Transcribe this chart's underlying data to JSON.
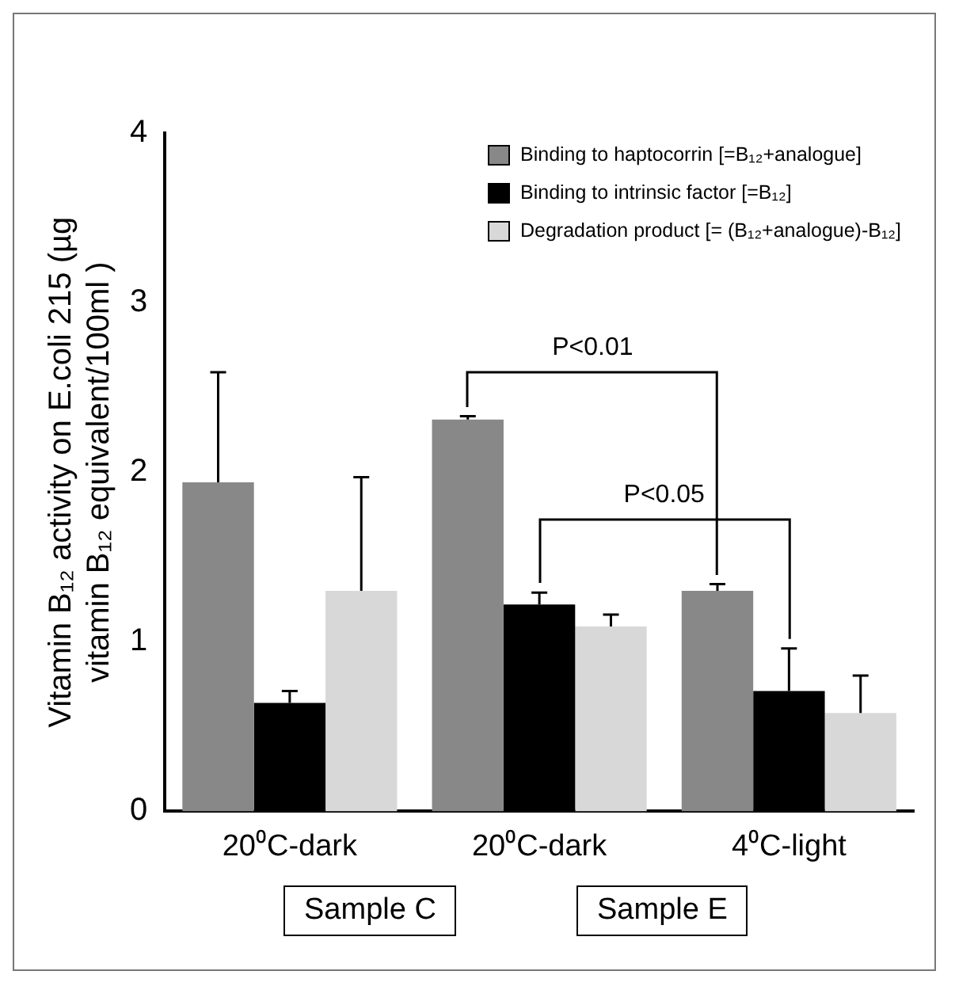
{
  "chart_data": {
    "type": "bar",
    "ylabel": "Vitamin B₁₂ activity on E.coli 215 (µg vitamin B₁₂ equivalent/100ml )",
    "categories": [
      "20⁰C-dark",
      "20⁰C-dark",
      "4⁰C-light"
    ],
    "series": [
      {
        "name": "Binding to haptocorrin [=B₁₂+analogue]",
        "color": "#888888",
        "values": [
          1.94,
          2.31,
          1.3
        ],
        "errors": [
          [
            1.94,
            2.59
          ],
          [
            2.31,
            2.33
          ],
          [
            1.3,
            1.34
          ]
        ]
      },
      {
        "name": "Binding to intrinsic factor [=B₁₂]",
        "color": "#000000",
        "values": [
          0.64,
          1.22,
          0.71
        ],
        "errors": [
          [
            0.64,
            0.71
          ],
          [
            1.22,
            1.29
          ],
          [
            0.71,
            0.96
          ]
        ]
      },
      {
        "name": "Degradation product [= (B₁₂+analogue)-B₁₂]",
        "color": "#d8d8d8",
        "values": [
          1.3,
          1.09,
          0.58
        ],
        "errors": [
          [
            1.3,
            1.97
          ],
          [
            1.09,
            1.16
          ],
          [
            0.58,
            0.8
          ]
        ]
      }
    ],
    "ylim": [
      0,
      4
    ],
    "yticks": [
      0,
      1,
      2,
      3,
      4
    ],
    "grid": false,
    "legend": "top right",
    "annotations": [
      "P<0.01",
      "P<0.05",
      "Sample C",
      "Sample E"
    ]
  }
}
